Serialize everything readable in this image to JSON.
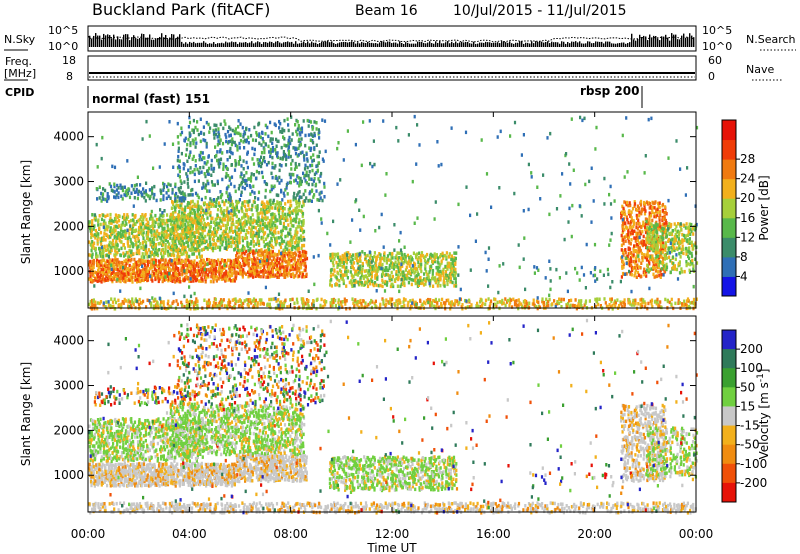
{
  "header": {
    "site": "Buckland Park (fitACF)",
    "beam": "Beam 16",
    "dates": "10/Jul/2015 - 11/Jul/2015"
  },
  "noise_panel": {
    "left_label": "N.Sky",
    "right_label": "N.Search",
    "left_ticks": [
      "10^5",
      "10^0"
    ],
    "right_ticks": [
      "10^5",
      "10^0"
    ]
  },
  "freq_panel": {
    "left_label_top": "Freq.",
    "left_label_bottom": "[MHz]",
    "right_label": "Nave",
    "left_ticks": [
      "18",
      "8"
    ],
    "right_ticks": [
      "60",
      "0"
    ]
  },
  "cpid": {
    "label": "CPID",
    "modes": [
      {
        "name": "normal (fast) 151",
        "start_hour": 0,
        "end_hour": 21.9
      },
      {
        "name": "rbsp 200",
        "start_hour": 21.9,
        "end_hour": 24
      }
    ]
  },
  "x_axis": {
    "label": "Time UT",
    "ticks": [
      "00:00",
      "04:00",
      "08:00",
      "12:00",
      "16:00",
      "20:00",
      "00:00"
    ],
    "tick_hours": [
      0,
      4,
      8,
      12,
      16,
      20,
      24
    ]
  },
  "chart_data": [
    {
      "type": "heatmap",
      "name": "power",
      "ylabel": "Slant Range [km]",
      "yticks": [
        1000,
        2000,
        3000,
        4000
      ],
      "ylim": [
        180,
        4550
      ],
      "xlim_hours": [
        0,
        24
      ],
      "colorbar": {
        "label": "Power [dB]",
        "ticks": [
          "4",
          "8",
          "12",
          "16",
          "20",
          "24",
          "28"
        ],
        "colors": [
          "#1414e6",
          "#2f6fb6",
          "#3b8c6a",
          "#58b84a",
          "#a6cf3a",
          "#f2b01c",
          "#f07a10",
          "#f03c08",
          "#e61208"
        ]
      }
    },
    {
      "type": "heatmap",
      "name": "velocity",
      "ylabel": "Slant Range [km]",
      "yticks": [
        1000,
        2000,
        3000,
        4000
      ],
      "ylim": [
        180,
        4550
      ],
      "xlim_hours": [
        0,
        24
      ],
      "colorbar": {
        "label": "Velocity [m s^-1]",
        "ticks": [
          "200",
          "100",
          "50",
          "15",
          "-15",
          "-50",
          "-100",
          "-200"
        ],
        "colors": [
          "#2424c8",
          "#2f7a5a",
          "#3aa030",
          "#70d040",
          "#c8c8c8",
          "#f2b01c",
          "#f08c10",
          "#f05008",
          "#e61208"
        ]
      }
    }
  ]
}
